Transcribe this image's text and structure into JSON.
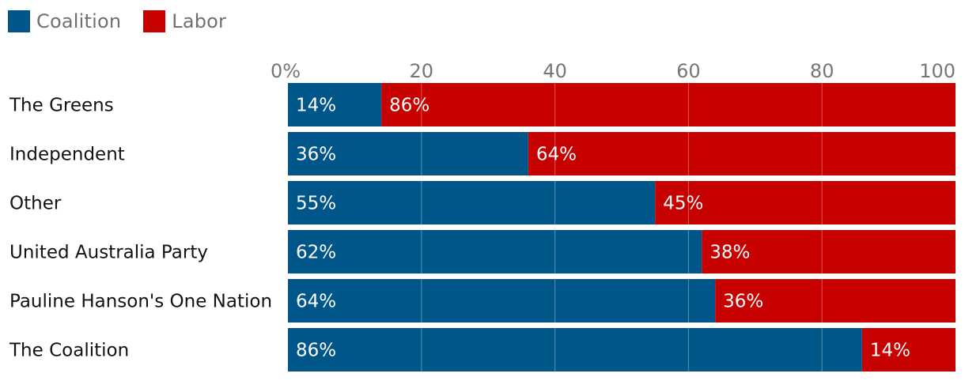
{
  "chart_data": {
    "type": "bar",
    "orientation": "horizontal",
    "stacked": true,
    "categories": [
      "The Greens",
      "Independent",
      "Other",
      "United Australia Party",
      "Pauline Hanson's One Nation",
      "The Coalition"
    ],
    "series": [
      {
        "name": "Coalition",
        "values": [
          14,
          36,
          55,
          62,
          64,
          86
        ],
        "labels": [
          "14%",
          "36%",
          "55%",
          "62%",
          "64%",
          "86%"
        ]
      },
      {
        "name": "Labor",
        "values": [
          86,
          64,
          45,
          38,
          36,
          14
        ],
        "labels": [
          "86%",
          "64%",
          "45%",
          "38%",
          "36%",
          "14%"
        ]
      }
    ],
    "xlim": [
      0,
      100
    ],
    "xticks": [
      0,
      20,
      40,
      60,
      80,
      100
    ],
    "xtick_labels": [
      "0%",
      "20",
      "40",
      "60",
      "80",
      "100"
    ],
    "legend_placement": "top-left",
    "grid": true,
    "title": "",
    "xlabel": "",
    "ylabel": ""
  },
  "colors": {
    "coalition": "#005689",
    "labor": "#c70000",
    "grid": "#ffffff",
    "text": "#121212",
    "tick": "#767676"
  }
}
